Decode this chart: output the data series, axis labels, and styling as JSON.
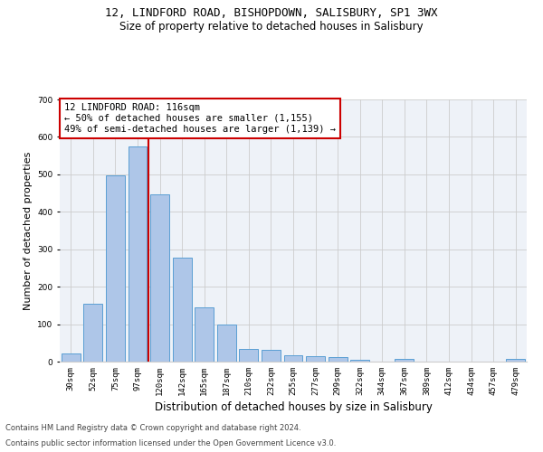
{
  "title_line1": "12, LINDFORD ROAD, BISHOPDOWN, SALISBURY, SP1 3WX",
  "title_line2": "Size of property relative to detached houses in Salisbury",
  "xlabel": "Distribution of detached houses by size in Salisbury",
  "ylabel": "Number of detached properties",
  "bar_labels": [
    "30sqm",
    "52sqm",
    "75sqm",
    "97sqm",
    "120sqm",
    "142sqm",
    "165sqm",
    "187sqm",
    "210sqm",
    "232sqm",
    "255sqm",
    "277sqm",
    "299sqm",
    "322sqm",
    "344sqm",
    "367sqm",
    "389sqm",
    "412sqm",
    "434sqm",
    "457sqm",
    "479sqm"
  ],
  "bar_values": [
    22,
    155,
    497,
    575,
    447,
    277,
    146,
    99,
    35,
    32,
    16,
    14,
    12,
    6,
    0,
    8,
    0,
    0,
    0,
    0,
    7
  ],
  "bar_color": "#aec6e8",
  "bar_edge_color": "#5a9fd4",
  "vline_color": "#cc0000",
  "annotation_text": "12 LINDFORD ROAD: 116sqm\n← 50% of detached houses are smaller (1,155)\n49% of semi-detached houses are larger (1,139) →",
  "annotation_box_color": "#ffffff",
  "annotation_box_edge": "#cc0000",
  "ylim": [
    0,
    700
  ],
  "yticks": [
    0,
    100,
    200,
    300,
    400,
    500,
    600,
    700
  ],
  "bg_color": "#eef2f8",
  "footer_line1": "Contains HM Land Registry data © Crown copyright and database right 2024.",
  "footer_line2": "Contains public sector information licensed under the Open Government Licence v3.0.",
  "title_fontsize": 9,
  "subtitle_fontsize": 8.5,
  "tick_fontsize": 6.5,
  "ylabel_fontsize": 8,
  "xlabel_fontsize": 8.5,
  "footer_fontsize": 6,
  "annotation_fontsize": 7.5
}
